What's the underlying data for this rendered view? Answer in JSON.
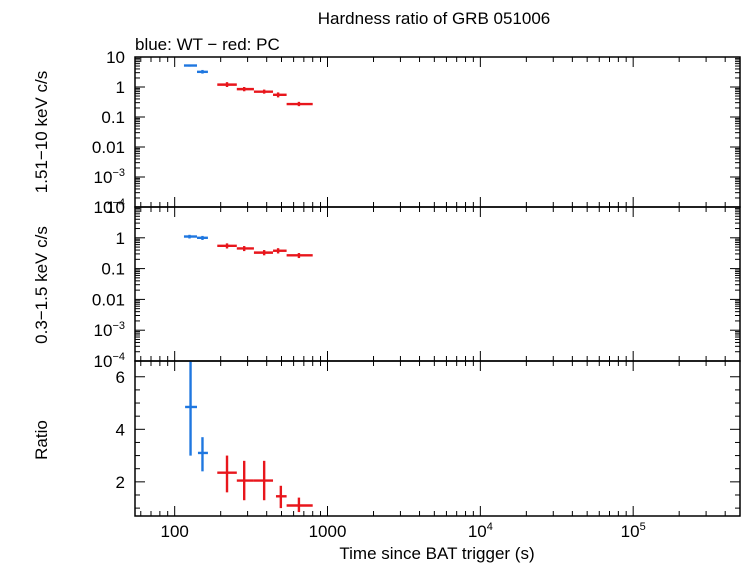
{
  "chart_data": {
    "type": "scatter",
    "title": "Hardness ratio of GRB 051006",
    "subtitle": "blue: WT − red: PC",
    "xlabel": "Time since BAT trigger (s)",
    "x_scale": "log",
    "xlim": [
      55,
      500000
    ],
    "x_ticks": [
      {
        "value": 100,
        "label": "100",
        "sup": ""
      },
      {
        "value": 1000,
        "label": "1000",
        "sup": ""
      },
      {
        "value": 10000,
        "label": "10",
        "sup": "4"
      },
      {
        "value": 100000,
        "label": "10",
        "sup": "5"
      }
    ],
    "colors": {
      "WT": "#1f77e0",
      "PC": "#e8161c"
    },
    "panels": [
      {
        "id": "hard",
        "ylabel": "1.51−10 keV c/s",
        "y_scale": "log",
        "ylim": [
          0.0001,
          10
        ],
        "y_ticks": [
          {
            "value": 10,
            "label": "10",
            "sup": ""
          },
          {
            "value": 1,
            "label": "1",
            "sup": ""
          },
          {
            "value": 0.1,
            "label": "0.1",
            "sup": ""
          },
          {
            "value": 0.01,
            "label": "0.01",
            "sup": ""
          },
          {
            "value": 0.001,
            "label": "10",
            "sup": "−3"
          },
          {
            "value": 0.0001,
            "label": "10",
            "sup": "−4"
          }
        ],
        "series": [
          {
            "mode": "WT",
            "points": [
              {
                "x": 125,
                "xlo": 115,
                "xhi": 140,
                "y": 5.2,
                "ylo": 4.8,
                "yhi": 5.6
              },
              {
                "x": 152,
                "xlo": 140,
                "xhi": 165,
                "y": 3.2,
                "ylo": 2.8,
                "yhi": 3.7
              }
            ]
          },
          {
            "mode": "PC",
            "points": [
              {
                "x": 220,
                "xlo": 190,
                "xhi": 255,
                "y": 1.2,
                "ylo": 1.0,
                "yhi": 1.45
              },
              {
                "x": 285,
                "xlo": 255,
                "xhi": 330,
                "y": 0.85,
                "ylo": 0.72,
                "yhi": 1.0
              },
              {
                "x": 385,
                "xlo": 330,
                "xhi": 440,
                "y": 0.7,
                "ylo": 0.6,
                "yhi": 0.82
              },
              {
                "x": 475,
                "xlo": 440,
                "xhi": 540,
                "y": 0.55,
                "ylo": 0.45,
                "yhi": 0.66
              },
              {
                "x": 650,
                "xlo": 540,
                "xhi": 800,
                "y": 0.27,
                "ylo": 0.23,
                "yhi": 0.32
              }
            ]
          }
        ]
      },
      {
        "id": "soft",
        "ylabel": "0.3−1.5 keV c/s",
        "y_scale": "log",
        "ylim": [
          0.0001,
          10
        ],
        "y_ticks": [
          {
            "value": 10,
            "label": "10",
            "sup": ""
          },
          {
            "value": 1,
            "label": "1",
            "sup": ""
          },
          {
            "value": 0.1,
            "label": "0.1",
            "sup": ""
          },
          {
            "value": 0.01,
            "label": "0.01",
            "sup": ""
          },
          {
            "value": 0.001,
            "label": "10",
            "sup": "−3"
          },
          {
            "value": 0.0001,
            "label": "10",
            "sup": "−4"
          }
        ],
        "series": [
          {
            "mode": "WT",
            "points": [
              {
                "x": 125,
                "xlo": 115,
                "xhi": 140,
                "y": 1.1,
                "ylo": 0.95,
                "yhi": 1.25
              },
              {
                "x": 152,
                "xlo": 140,
                "xhi": 165,
                "y": 1.0,
                "ylo": 0.85,
                "yhi": 1.15
              }
            ]
          },
          {
            "mode": "PC",
            "points": [
              {
                "x": 220,
                "xlo": 190,
                "xhi": 255,
                "y": 0.55,
                "ylo": 0.45,
                "yhi": 0.66
              },
              {
                "x": 285,
                "xlo": 255,
                "xhi": 330,
                "y": 0.45,
                "ylo": 0.37,
                "yhi": 0.54
              },
              {
                "x": 385,
                "xlo": 330,
                "xhi": 440,
                "y": 0.33,
                "ylo": 0.27,
                "yhi": 0.4
              },
              {
                "x": 475,
                "xlo": 440,
                "xhi": 540,
                "y": 0.38,
                "ylo": 0.31,
                "yhi": 0.46
              },
              {
                "x": 650,
                "xlo": 540,
                "xhi": 800,
                "y": 0.27,
                "ylo": 0.22,
                "yhi": 0.32
              }
            ]
          }
        ]
      },
      {
        "id": "ratio",
        "ylabel": "Ratio",
        "y_scale": "linear",
        "ylim": [
          0.7,
          6.6
        ],
        "y_ticks": [
          {
            "value": 6,
            "label": "6",
            "sup": ""
          },
          {
            "value": 4,
            "label": "4",
            "sup": ""
          },
          {
            "value": 2,
            "label": "2",
            "sup": ""
          }
        ],
        "series": [
          {
            "mode": "WT",
            "points": [
              {
                "x": 127,
                "xlo": 117,
                "xhi": 140,
                "y": 4.85,
                "ylo": 3.0,
                "yhi": 6.9
              },
              {
                "x": 152,
                "xlo": 142,
                "xhi": 165,
                "y": 3.1,
                "ylo": 2.4,
                "yhi": 3.7
              }
            ]
          },
          {
            "mode": "PC",
            "points": [
              {
                "x": 220,
                "xlo": 190,
                "xhi": 255,
                "y": 2.35,
                "ylo": 1.6,
                "yhi": 3.0
              },
              {
                "x": 285,
                "xlo": 255,
                "xhi": 330,
                "y": 2.05,
                "ylo": 1.3,
                "yhi": 2.8
              },
              {
                "x": 385,
                "xlo": 330,
                "xhi": 440,
                "y": 2.05,
                "ylo": 1.3,
                "yhi": 2.8
              },
              {
                "x": 495,
                "xlo": 460,
                "xhi": 540,
                "y": 1.45,
                "ylo": 1.0,
                "yhi": 1.85
              },
              {
                "x": 650,
                "xlo": 540,
                "xhi": 800,
                "y": 1.1,
                "ylo": 0.85,
                "yhi": 1.4
              }
            ]
          }
        ]
      }
    ]
  }
}
